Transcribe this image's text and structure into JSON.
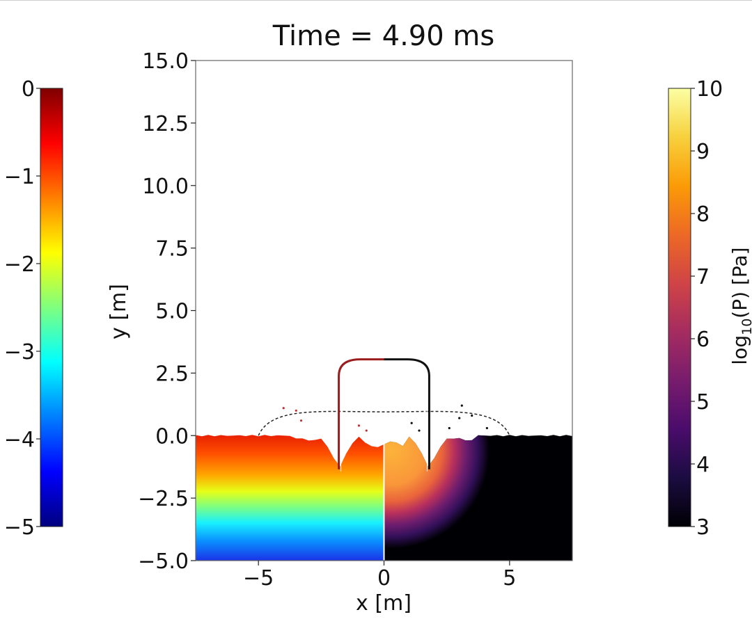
{
  "chart_data": {
    "type": "heatmap",
    "title": "Time = 4.90 ms",
    "xlabel": "x [m]",
    "ylabel": "y [m]",
    "xlim": [
      -7.5,
      7.5
    ],
    "ylim": [
      -5.0,
      15.0
    ],
    "x_ticks": [
      -5,
      0,
      5
    ],
    "x_tick_labels": [
      "−5",
      "0",
      "5"
    ],
    "y_ticks": [
      15.0,
      12.5,
      10.0,
      7.5,
      5.0,
      2.5,
      0.0,
      -2.5,
      -5.0
    ],
    "y_tick_labels": [
      "15.0",
      "12.5",
      "10.0",
      "7.5",
      "5.0",
      "2.5",
      "0.0",
      "−2.5",
      "−5.0"
    ],
    "grid": false,
    "left_field": {
      "colormap": "jet",
      "colorbar_label": "",
      "range": [
        -5,
        0
      ],
      "ticks": [
        0,
        -1,
        -2,
        -3,
        -4,
        -5
      ],
      "tick_labels": [
        "0",
        "−1",
        "−2",
        "−3",
        "−4",
        "−5"
      ]
    },
    "right_field": {
      "colormap": "inferno",
      "colorbar_label": "log",
      "colorbar_label_sub": "10",
      "colorbar_label_rest": "(P) [Pa]",
      "range": [
        3,
        10
      ],
      "ticks": [
        10,
        9,
        8,
        7,
        6,
        5,
        4,
        3
      ],
      "tick_labels": [
        "10",
        "9",
        "8",
        "7",
        "6",
        "5",
        "4",
        "3"
      ]
    },
    "features": {
      "ground_level_y": 0.0,
      "ground_bottom_y": -5.0,
      "dome_half_width": 1.8,
      "dome_top_y": 3.05,
      "dome_leg_bottom_y": -1.35,
      "dashed_arc_half_width": 5.0,
      "dashed_arc_top_y": 0.95,
      "pressure_core_radius": 2.3,
      "pressure_halo_radius": 3.9
    },
    "colors": {
      "jet": [
        "#00007f",
        "#0000ff",
        "#007fff",
        "#00ffff",
        "#7fff7f",
        "#ffff00",
        "#ff7f00",
        "#ff0000",
        "#7f0000"
      ],
      "inferno": [
        "#000004",
        "#1b0c41",
        "#4a0c6b",
        "#781c6d",
        "#a52c60",
        "#cf4446",
        "#ed6925",
        "#fb9b06",
        "#f7d13d",
        "#fcffa4"
      ]
    }
  }
}
